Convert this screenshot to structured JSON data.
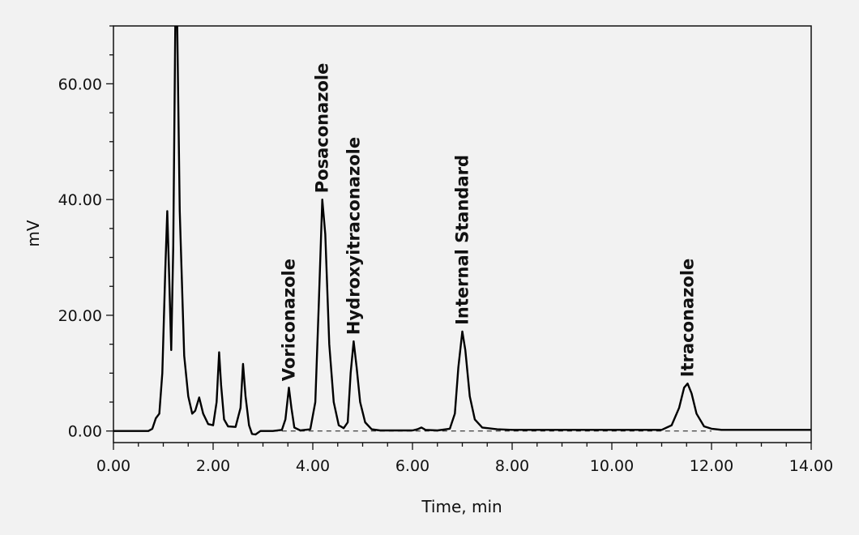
{
  "chart_data": {
    "type": "line",
    "title": "",
    "xlabel": "Time, min",
    "ylabel": "mV",
    "xlim": [
      0,
      14
    ],
    "ylim": [
      -2,
      70
    ],
    "xticks": [
      0,
      2,
      4,
      6,
      8,
      10,
      12,
      14
    ],
    "xtick_labels": [
      "0.00",
      "2.00",
      "4.00",
      "6.00",
      "8.00",
      "10.00",
      "12.00",
      "14.00"
    ],
    "yticks": [
      0,
      20,
      40,
      60
    ],
    "ytick_labels": [
      "0.00",
      "20.00",
      "40.00",
      "60.00"
    ],
    "baseline": {
      "style": "dashed",
      "x": [
        3.2,
        12.0
      ],
      "y": 0
    },
    "colors": {
      "trace": "#000000",
      "background": "#f2f2f2"
    },
    "series": [
      {
        "values": [
          [
            0.0,
            0.0
          ],
          [
            0.7,
            0.0
          ],
          [
            0.78,
            0.4
          ],
          [
            0.85,
            2.2
          ],
          [
            0.92,
            3.0
          ],
          [
            0.98,
            10.0
          ],
          [
            1.04,
            28.0
          ],
          [
            1.08,
            38.0
          ],
          [
            1.12,
            26.0
          ],
          [
            1.16,
            14.0
          ],
          [
            1.2,
            32.0
          ],
          [
            1.24,
            70.0
          ],
          [
            1.28,
            70.0
          ],
          [
            1.33,
            38.0
          ],
          [
            1.42,
            13.0
          ],
          [
            1.5,
            6.0
          ],
          [
            1.58,
            3.0
          ],
          [
            1.64,
            3.5
          ],
          [
            1.72,
            5.8
          ],
          [
            1.8,
            3.0
          ],
          [
            1.9,
            1.2
          ],
          [
            2.0,
            1.0
          ],
          [
            2.07,
            5.0
          ],
          [
            2.12,
            13.6
          ],
          [
            2.16,
            8.0
          ],
          [
            2.22,
            2.0
          ],
          [
            2.3,
            0.8
          ],
          [
            2.45,
            0.7
          ],
          [
            2.55,
            4.0
          ],
          [
            2.6,
            11.6
          ],
          [
            2.65,
            6.0
          ],
          [
            2.72,
            1.0
          ],
          [
            2.78,
            -0.5
          ],
          [
            2.85,
            -0.6
          ],
          [
            2.95,
            0.0
          ],
          [
            3.2,
            0.0
          ],
          [
            3.38,
            0.2
          ],
          [
            3.45,
            2.0
          ],
          [
            3.52,
            7.5
          ],
          [
            3.57,
            4.0
          ],
          [
            3.63,
            0.6
          ],
          [
            3.75,
            0.1
          ],
          [
            3.95,
            0.3
          ],
          [
            4.05,
            5.0
          ],
          [
            4.12,
            22.0
          ],
          [
            4.19,
            40.0
          ],
          [
            4.25,
            34.0
          ],
          [
            4.33,
            15.0
          ],
          [
            4.42,
            5.0
          ],
          [
            4.52,
            1.0
          ],
          [
            4.62,
            0.5
          ],
          [
            4.7,
            1.5
          ],
          [
            4.76,
            10.0
          ],
          [
            4.82,
            15.5
          ],
          [
            4.88,
            11.0
          ],
          [
            4.95,
            5.0
          ],
          [
            5.05,
            1.5
          ],
          [
            5.18,
            0.3
          ],
          [
            5.35,
            0.1
          ],
          [
            6.0,
            0.1
          ],
          [
            6.1,
            0.3
          ],
          [
            6.18,
            0.6
          ],
          [
            6.26,
            0.2
          ],
          [
            6.5,
            0.1
          ],
          [
            6.75,
            0.4
          ],
          [
            6.85,
            3.0
          ],
          [
            6.92,
            11.0
          ],
          [
            7.0,
            17.2
          ],
          [
            7.06,
            14.0
          ],
          [
            7.15,
            6.0
          ],
          [
            7.25,
            2.0
          ],
          [
            7.4,
            0.6
          ],
          [
            7.7,
            0.3
          ],
          [
            8.0,
            0.2
          ],
          [
            11.0,
            0.2
          ],
          [
            11.2,
            1.0
          ],
          [
            11.35,
            4.0
          ],
          [
            11.45,
            7.5
          ],
          [
            11.52,
            8.2
          ],
          [
            11.6,
            6.5
          ],
          [
            11.7,
            3.0
          ],
          [
            11.85,
            0.8
          ],
          [
            12.0,
            0.4
          ],
          [
            12.2,
            0.2
          ],
          [
            14.0,
            0.2
          ]
        ]
      }
    ],
    "annotations": [
      {
        "text": "Voriconazole",
        "x": 3.52,
        "y": 7.5
      },
      {
        "text": "Posaconazole",
        "x": 4.19,
        "y": 40.0
      },
      {
        "text": "Hydroxyitraconazole",
        "x": 4.82,
        "y": 15.5
      },
      {
        "text": "Internal Standard",
        "x": 7.0,
        "y": 17.2
      },
      {
        "text": "Itraconazole",
        "x": 11.52,
        "y": 8.2
      }
    ]
  }
}
